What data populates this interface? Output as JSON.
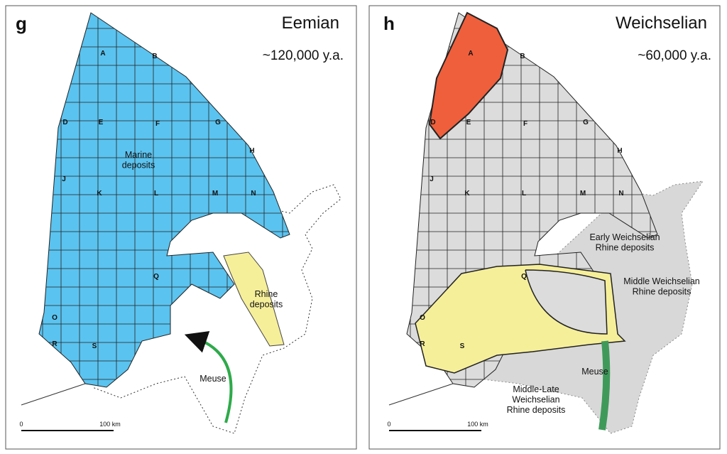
{
  "panels": [
    {
      "label": "g",
      "title": "Eemian",
      "age": "~120,000 y.a.",
      "grid_labels": [
        "A",
        "B",
        "D",
        "E",
        "F",
        "G",
        "H",
        "J",
        "K",
        "L",
        "M",
        "N",
        "Q",
        "O",
        "R",
        "S"
      ],
      "annotations": [
        {
          "lines": [
            "Marine",
            "deposits"
          ]
        },
        {
          "lines": [
            "Rhine",
            "deposits"
          ]
        },
        {
          "lines": [
            "Meuse"
          ]
        }
      ],
      "scale": {
        "start": "0",
        "end": "100 km"
      }
    },
    {
      "label": "h",
      "title": "Weichselian",
      "age": "~60,000 y.a.",
      "grid_labels": [
        "A",
        "B",
        "D",
        "E",
        "F",
        "G",
        "H",
        "J",
        "K",
        "L",
        "M",
        "N",
        "Q",
        "O",
        "R",
        "S"
      ],
      "annotations": [
        {
          "lines": [
            "Early Weichselian",
            "Rhine deposits"
          ]
        },
        {
          "lines": [
            "Middle Weichselian",
            "Rhine deposits"
          ]
        },
        {
          "lines": [
            "Middle-Late",
            "Weichselian",
            "Rhine deposits"
          ]
        },
        {
          "lines": [
            "Meuse"
          ]
        }
      ],
      "scale": {
        "start": "0",
        "end": "100 km"
      }
    }
  ]
}
